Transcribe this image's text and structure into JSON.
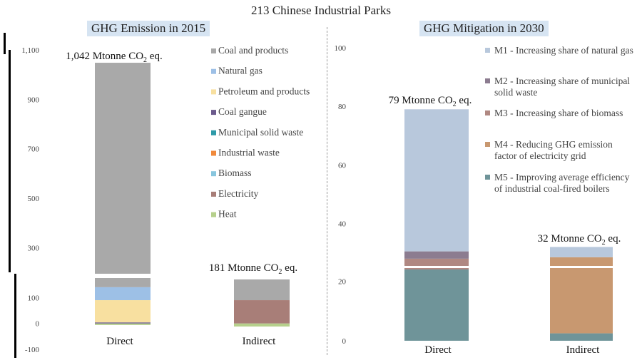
{
  "title": "213 Chinese Industrial Parks",
  "chart_data": [
    {
      "type": "bar",
      "stacked": true,
      "title": "GHG Emission in 2015",
      "categories": [
        "Direct",
        "Indirect"
      ],
      "yticks": [
        -100,
        0,
        100,
        300,
        500,
        700,
        900,
        1100
      ],
      "ytick_labels": [
        "-100",
        "0",
        "100",
        "300",
        "500",
        "700",
        "900",
        "1,100"
      ],
      "ylim": [
        -100,
        1100
      ],
      "axis_break": [
        170,
        200
      ],
      "totals": [
        "1,042 Mtonne CO2 eq.",
        "181 Mtonne CO2 eq."
      ],
      "series": [
        {
          "name": "Heat",
          "color": "#b6d08c",
          "values": [
            -6,
            -12
          ]
        },
        {
          "name": "Coal gangue",
          "color": "#6b5a8c",
          "values": [
            4,
            0
          ]
        },
        {
          "name": "Petroleum and products",
          "color": "#f8e0a0",
          "values": [
            86,
            0
          ]
        },
        {
          "name": "Natural gas",
          "color": "#9dc0e6",
          "values": [
            50,
            0
          ]
        },
        {
          "name": "Municipal solid waste",
          "color": "#2e9aa8",
          "values": [
            0,
            0
          ]
        },
        {
          "name": "Industrial waste",
          "color": "#f08a3c",
          "values": [
            0,
            0
          ]
        },
        {
          "name": "Biomass",
          "color": "#88c6de",
          "values": [
            0,
            0
          ]
        },
        {
          "name": "Electricity",
          "color": "#a87e78",
          "values": [
            0,
            90
          ]
        },
        {
          "name": "Coal and products",
          "color": "#a9a9a9",
          "values": [
            908,
            103
          ]
        }
      ],
      "legend_order": [
        "Coal and products",
        "Natural gas",
        "Petroleum and products",
        "Coal gangue",
        "Municipal solid waste",
        "Industrial waste",
        "Biomass",
        "Electricity",
        "Heat"
      ]
    },
    {
      "type": "bar",
      "stacked": true,
      "title": "GHG Mitigation in 2030",
      "categories": [
        "Direct",
        "Indirect"
      ],
      "yticks": [
        0,
        20,
        40,
        60,
        80,
        100
      ],
      "ytick_labels": [
        "0",
        "20",
        "40",
        "60",
        "80",
        "100"
      ],
      "ylim": [
        0,
        100
      ],
      "axis_break": [
        24,
        27
      ],
      "totals": [
        "79 Mtonne CO2 eq.",
        "32 Mtonne CO2 eq."
      ],
      "series": [
        {
          "name": "M5 - Improving average efficiency of industrial coal-fired boilers",
          "color": "#6f9499",
          "values": [
            25,
            2.5
          ]
        },
        {
          "name": "M4 - Reducing GHG emission factor of electricity grid",
          "color": "#c89870",
          "values": [
            0,
            26
          ]
        },
        {
          "name": "M3 - Increasing share of biomass",
          "color": "#b08882",
          "values": [
            3,
            0
          ]
        },
        {
          "name": "M2 - Increasing share of municipal solid waste",
          "color": "#8c7c90",
          "values": [
            2.5,
            0
          ]
        },
        {
          "name": "M1 - Increasing share of natural gas",
          "color": "#b8c8dc",
          "values": [
            48.5,
            3.5
          ]
        }
      ],
      "legend": [
        {
          "lines": [
            "M1 - Increasing share of natural gas"
          ],
          "color": "#b8c8dc"
        },
        {
          "lines": [
            "M2 - Increasing share of municipal",
            "solid waste"
          ],
          "color": "#8c7c90"
        },
        {
          "lines": [
            "M3 - Increasing share of biomass"
          ],
          "color": "#b08882"
        },
        {
          "lines": [
            "M4 - Reducing GHG emission",
            "factor of electricity grid"
          ],
          "color": "#c89870"
        },
        {
          "lines": [
            "M5 - Improving average efficiency",
            "of industrial coal-fired boilers"
          ],
          "color": "#6f9499"
        }
      ]
    }
  ]
}
